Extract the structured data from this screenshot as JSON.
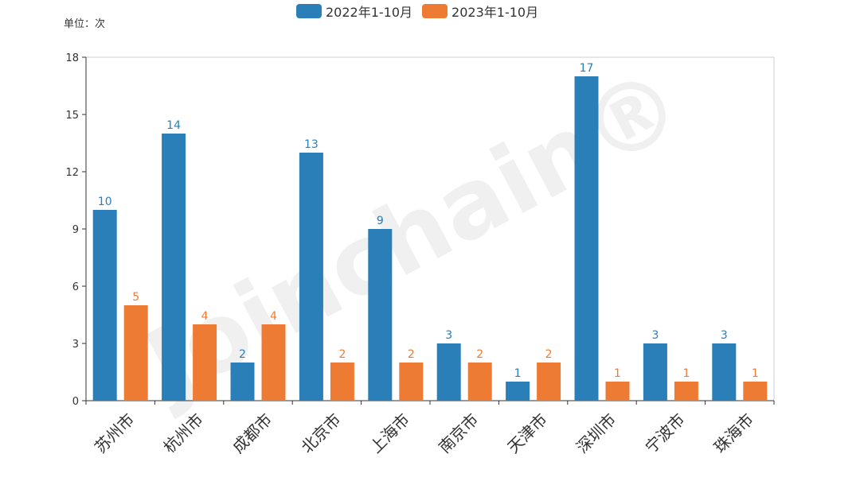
{
  "unit_label": "单位：次",
  "legend": [
    {
      "label": "2022年1-10月",
      "color": "#2b7fb8"
    },
    {
      "label": "2023年1-10月",
      "color": "#ee7b33"
    }
  ],
  "watermark": "Joinchain®",
  "chart_data": {
    "type": "bar",
    "categories": [
      "苏州市",
      "杭州市",
      "成都市",
      "北京市",
      "上海市",
      "南京市",
      "天津市",
      "深圳市",
      "宁波市",
      "珠海市"
    ],
    "series": [
      {
        "name": "2022年1-10月",
        "color": "#2b7fb8",
        "values": [
          10,
          14,
          2,
          13,
          9,
          3,
          1,
          17,
          3,
          3
        ]
      },
      {
        "name": "2023年1-10月",
        "color": "#ee7b33",
        "values": [
          5,
          4,
          4,
          2,
          2,
          2,
          2,
          1,
          1,
          1
        ]
      }
    ],
    "ylim": [
      0,
      18
    ],
    "yticks": [
      0,
      3,
      6,
      9,
      12,
      15,
      18
    ],
    "grid": false,
    "legend_position": "top-center",
    "ylabel": "单位：次"
  }
}
